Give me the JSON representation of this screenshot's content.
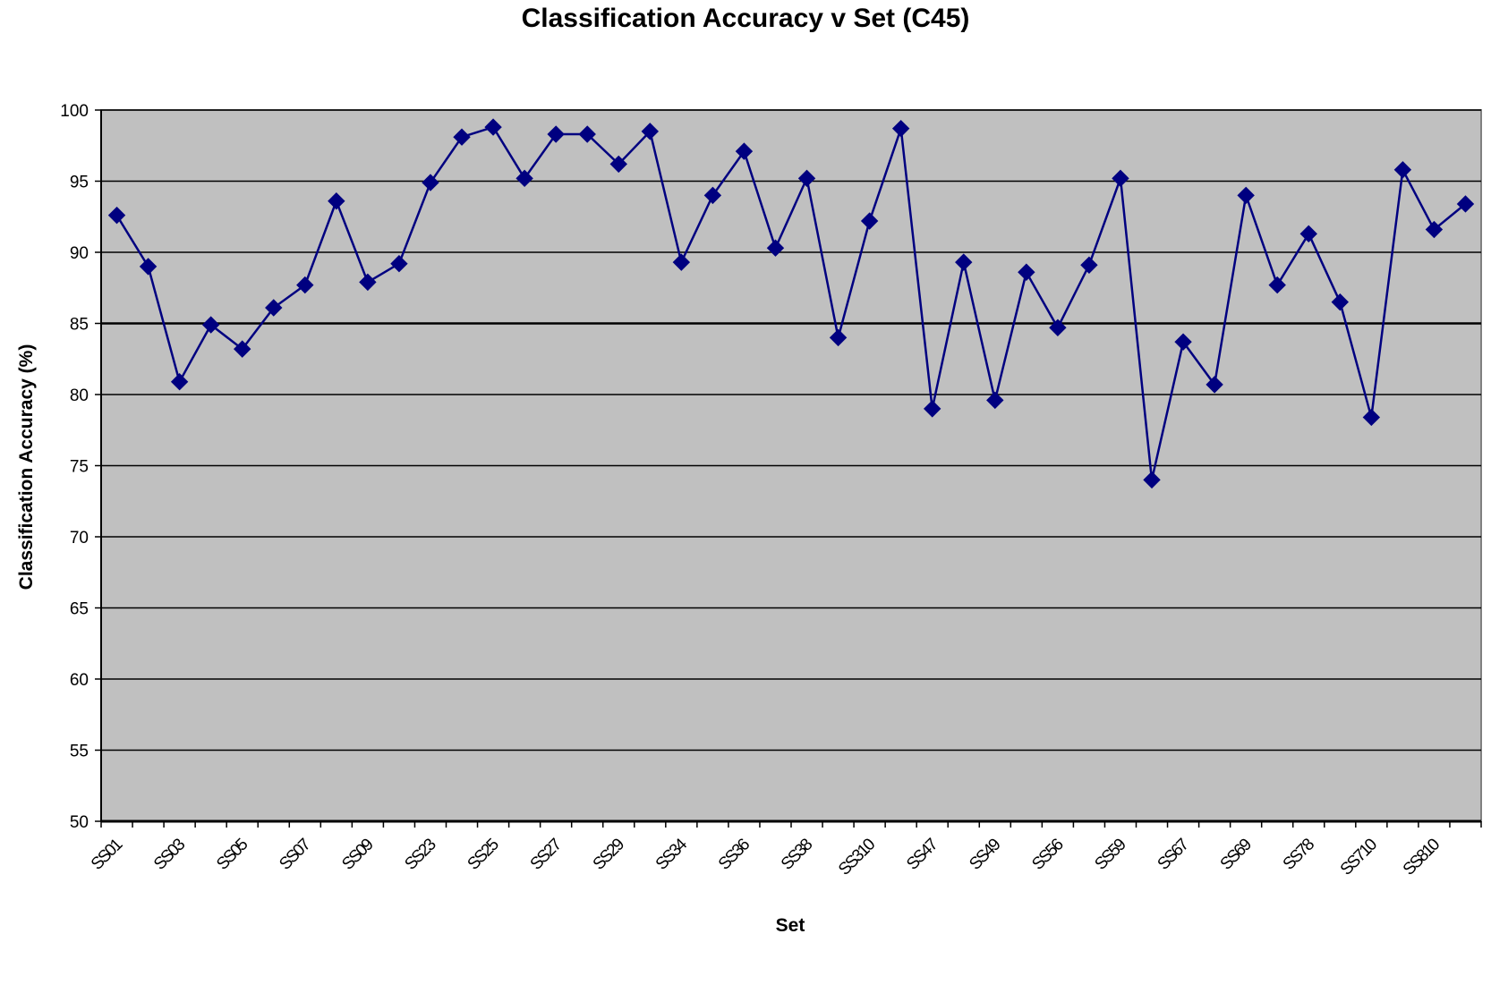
{
  "chart_data": {
    "type": "line",
    "title": "Classification Accuracy v Set (C45)",
    "xlabel": "Set",
    "ylabel": "Classification Accuracy (%)",
    "ylim": [
      50,
      100
    ],
    "yticks": [
      50,
      55,
      60,
      65,
      70,
      75,
      80,
      85,
      90,
      95,
      100
    ],
    "grid": true,
    "legend": "none",
    "colors": {
      "plot_background": "#c0c0c0",
      "line": "#000080",
      "grid": "#000000"
    },
    "tick_labels": [
      "SS01",
      "SS03",
      "SS05",
      "SS07",
      "SS09",
      "SS23",
      "SS25",
      "SS27",
      "SS29",
      "SS34",
      "SS36",
      "SS38",
      "SS310",
      "SS47",
      "SS49",
      "SS56",
      "SS59",
      "SS67",
      "SS69",
      "SS78",
      "SS710",
      "SS810"
    ],
    "series": [
      {
        "values": [
          92.6,
          89.0,
          80.9,
          84.9,
          83.2,
          86.1,
          87.7,
          93.6,
          87.9,
          89.2,
          94.9,
          98.1,
          98.8,
          95.2,
          98.3,
          98.3,
          96.2,
          98.5,
          89.3,
          94.0,
          97.1,
          90.3,
          95.2,
          84.0,
          92.2,
          98.7,
          79.0,
          89.3,
          79.6,
          88.6,
          84.7,
          89.1,
          95.2,
          74.0,
          83.7,
          80.7,
          94.0,
          87.7,
          91.3,
          86.5,
          78.4,
          95.8,
          91.6,
          93.4
        ]
      }
    ]
  }
}
